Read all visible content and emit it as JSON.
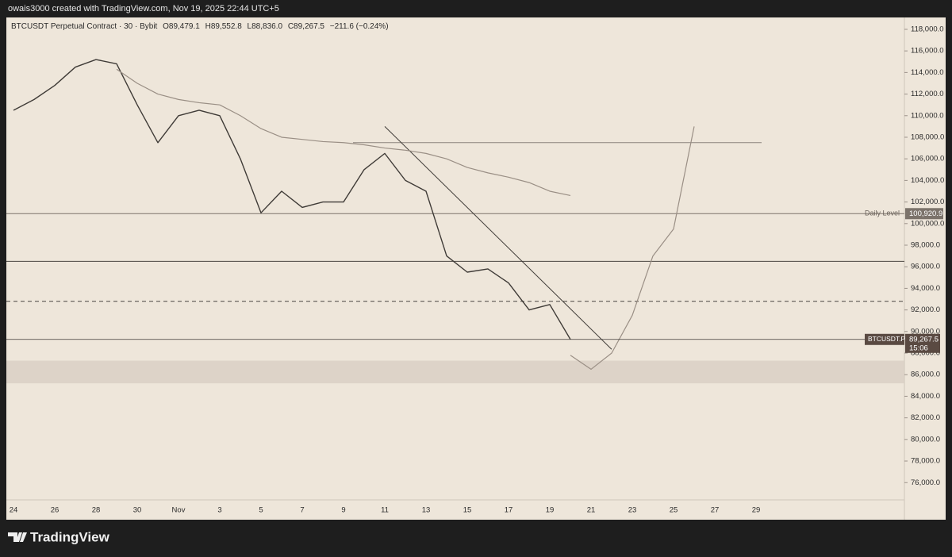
{
  "attribution": "owais3000 created with TradingView.com, Nov 19, 2025 22:44 UTC+5",
  "branding": "TradingView",
  "chart_data": {
    "type": "line",
    "title": "BTCUSDT Perpetual Contract · 30 · Bybit",
    "ohlc": [
      "O89,479.1",
      "H89,552.8",
      "L88,836.0",
      "C89,267.5"
    ],
    "change": "−211.6 (−0.24%)",
    "categories": [
      "24",
      null,
      "26",
      null,
      "28",
      null,
      "30",
      null,
      "Nov",
      null,
      "3",
      null,
      "5",
      null,
      "7",
      null,
      "9",
      null,
      "11",
      null,
      "13",
      null,
      "15",
      null,
      "17",
      null,
      "19",
      null,
      "21",
      null,
      "23",
      null,
      "25",
      null,
      "27",
      null,
      "29"
    ],
    "series": [
      {
        "color": "#3f3b37",
        "values": [
          110500,
          111500,
          112800,
          114500,
          115200,
          114800,
          111000,
          107500,
          110000,
          110500,
          110000,
          106000,
          101000,
          103000,
          101500,
          102000,
          102000,
          105000,
          106500,
          104000,
          103000,
          97000,
          95500,
          95800,
          94500,
          92000,
          92500,
          89267.5,
          null,
          null,
          null,
          null,
          null,
          null,
          null,
          null,
          null
        ]
      },
      {
        "color": "#9a8f85",
        "values": [
          null,
          null,
          null,
          null,
          null,
          114300,
          113000,
          112000,
          111500,
          111200,
          111000,
          110000,
          108800,
          108000,
          107800,
          107600,
          107500,
          107300,
          107000,
          106800,
          106500,
          106000,
          105200,
          104700,
          104300,
          103800,
          103000,
          102600,
          null,
          null,
          null,
          null,
          null,
          null,
          null,
          null,
          null
        ]
      },
      {
        "color": "#9a8f85",
        "values": [
          null,
          null,
          null,
          null,
          null,
          null,
          null,
          null,
          null,
          null,
          null,
          null,
          null,
          null,
          null,
          null,
          null,
          null,
          null,
          null,
          null,
          null,
          null,
          null,
          null,
          null,
          null,
          87800,
          86500,
          88000,
          91500,
          97000,
          99500,
          109000,
          null,
          null,
          null
        ]
      }
    ],
    "trendline": {
      "color": "#3f3b37",
      "values": [
        109000,
        88350
      ],
      "categories": [
        18,
        29
      ]
    },
    "levels": [
      {
        "value": 107500,
        "color": "#8c847c",
        "style": "solid"
      },
      {
        "value": 96500,
        "color": "#4a4541",
        "style": "solid"
      },
      {
        "value": 92800,
        "color": "#4a4541",
        "style": "dashed"
      }
    ],
    "daily_level": {
      "value": 100920.9,
      "label": "Daily Level",
      "value_label": "100,920.9",
      "color": "#7c736b"
    },
    "zone": {
      "values": [
        85200,
        87300
      ],
      "color": "#d9cfc4"
    },
    "last_price": {
      "value": 89267.5,
      "label": "89,267.5",
      "symbol": "BTCUSDT.P",
      "countdown": "15:06",
      "color": "#5a4a42"
    },
    "ylim": [
      74400,
      119100
    ],
    "yticks": [
      {
        "value": 76000,
        "label": "76,000.0"
      },
      {
        "value": 78000,
        "label": "78,000.0"
      },
      {
        "value": 80000,
        "label": "80,000.0"
      },
      {
        "value": 82000,
        "label": "82,000.0"
      },
      {
        "value": 84000,
        "label": "84,000.0"
      },
      {
        "value": 86000,
        "label": "86,000.0"
      },
      {
        "value": 88000,
        "label": "88,000.0"
      },
      {
        "value": 90000,
        "label": "90,000.0"
      },
      {
        "value": 92000,
        "label": "92,000.0"
      },
      {
        "value": 94000,
        "label": "94,000.0"
      },
      {
        "value": 96000,
        "label": "96,000.0"
      },
      {
        "value": 98000,
        "label": "98,000.0"
      },
      {
        "value": 100000,
        "label": "100,000.0"
      },
      {
        "value": 102000,
        "label": "102,000.0"
      },
      {
        "value": 104000,
        "label": "104,000.0"
      },
      {
        "value": 106000,
        "label": "106,000.0"
      },
      {
        "value": 108000,
        "label": "108,000.0"
      },
      {
        "value": 110000,
        "label": "110,000.0"
      },
      {
        "value": 112000,
        "label": "112,000.0"
      },
      {
        "value": 114000,
        "label": "114,000.0"
      },
      {
        "value": 116000,
        "label": "116,000.0"
      },
      {
        "value": 118000,
        "label": "118,000.0"
      }
    ],
    "grid": false
  }
}
